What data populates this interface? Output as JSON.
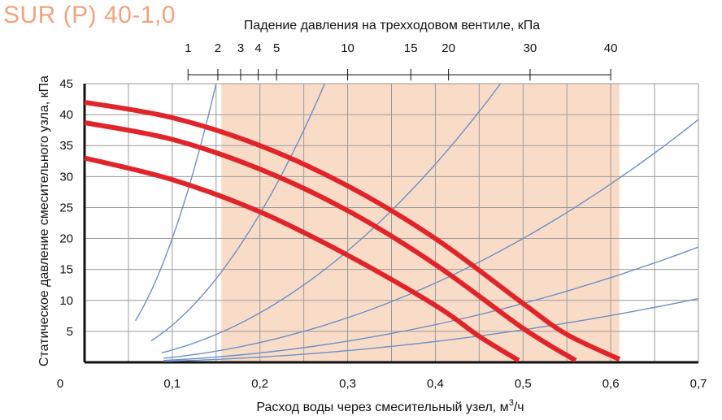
{
  "title": "SUR (P) 40-1,0",
  "chart_data": {
    "type": "line",
    "title": "SUR (P) 40-1,0",
    "xlabel": "Расход воды через смесительный узел, м³/ч",
    "xlabel_main": "Расход воды через смесительный узел, м",
    "xlabel_sup": "3",
    "xlabel_tail": "/ч",
    "ylabel": "Статическое давление смесительного узла, кПа",
    "top_axis_label": "Падение давления на трехходовом вентиле, кПа",
    "xlim": [
      0,
      0.7
    ],
    "ylim": [
      0,
      45
    ],
    "x_ticks": [
      {
        "v": 0,
        "label": "0"
      },
      {
        "v": 0.1,
        "label": "0,1"
      },
      {
        "v": 0.2,
        "label": "0,2"
      },
      {
        "v": 0.3,
        "label": "0,3"
      },
      {
        "v": 0.4,
        "label": "0,4"
      },
      {
        "v": 0.5,
        "label": "0,5"
      },
      {
        "v": 0.6,
        "label": "0,6"
      },
      {
        "v": 0.7,
        "label": "0,7"
      }
    ],
    "y_ticks": [
      {
        "v": 5,
        "label": "5"
      },
      {
        "v": 10,
        "label": "10"
      },
      {
        "v": 15,
        "label": "15"
      },
      {
        "v": 20,
        "label": "20"
      },
      {
        "v": 25,
        "label": "25"
      },
      {
        "v": 30,
        "label": "30"
      },
      {
        "v": 35,
        "label": "35"
      },
      {
        "v": 40,
        "label": "40"
      },
      {
        "v": 45,
        "label": "45"
      }
    ],
    "top_ticks": [
      {
        "label": "1",
        "x": 0.118
      },
      {
        "label": "2",
        "x": 0.152
      },
      {
        "label": "3",
        "x": 0.178
      },
      {
        "label": "4",
        "x": 0.198
      },
      {
        "label": "5",
        "x": 0.219
      },
      {
        "label": "10",
        "x": 0.3
      },
      {
        "label": "15",
        "x": 0.372
      },
      {
        "label": "20",
        "x": 0.415
      },
      {
        "label": "30",
        "x": 0.508
      },
      {
        "label": "40",
        "x": 0.6
      }
    ],
    "grid": true,
    "grid_x_step": 0.05,
    "grid_y_step": 5,
    "highlight_region": {
      "x_from": 0.156,
      "x_to": 0.61,
      "color": "#f9dcc8"
    },
    "colors": {
      "pump": "#e0252a",
      "system": "#6f8fc4",
      "grid": "#9a9a9a",
      "highlight": "#f9dcc8",
      "title": "#f0a47e"
    },
    "pump_series": [
      {
        "points": [
          [
            0,
            42.0
          ],
          [
            0.1,
            39.5
          ],
          [
            0.2,
            35.0
          ],
          [
            0.3,
            28.5
          ],
          [
            0.4,
            20.0
          ],
          [
            0.5,
            9.5
          ],
          [
            0.55,
            4.5
          ],
          [
            0.61,
            0.5
          ]
        ]
      },
      {
        "points": [
          [
            0,
            38.7
          ],
          [
            0.1,
            36.0
          ],
          [
            0.2,
            31.2
          ],
          [
            0.3,
            24.5
          ],
          [
            0.4,
            15.8
          ],
          [
            0.5,
            5.5
          ],
          [
            0.56,
            0.3
          ]
        ]
      },
      {
        "points": [
          [
            0,
            33.0
          ],
          [
            0.1,
            29.5
          ],
          [
            0.2,
            24.3
          ],
          [
            0.3,
            17.3
          ],
          [
            0.4,
            9.2
          ],
          [
            0.45,
            4.2
          ],
          [
            0.495,
            0.3
          ]
        ]
      }
    ],
    "system_curves": [
      {
        "k": 2000,
        "x_from": 0.058,
        "y_max": 45
      },
      {
        "k": 600,
        "x_from": 0.076,
        "y_max": 45
      },
      {
        "k": 200,
        "x_from": 0.088,
        "y_max": 45
      },
      {
        "k": 80,
        "x_from": 0.09,
        "y_max": 45
      },
      {
        "k": 38,
        "x_from": 0.09,
        "y_max": 27.5
      },
      {
        "k": 21,
        "x_from": 0.09,
        "y_max": 10.5
      }
    ]
  }
}
